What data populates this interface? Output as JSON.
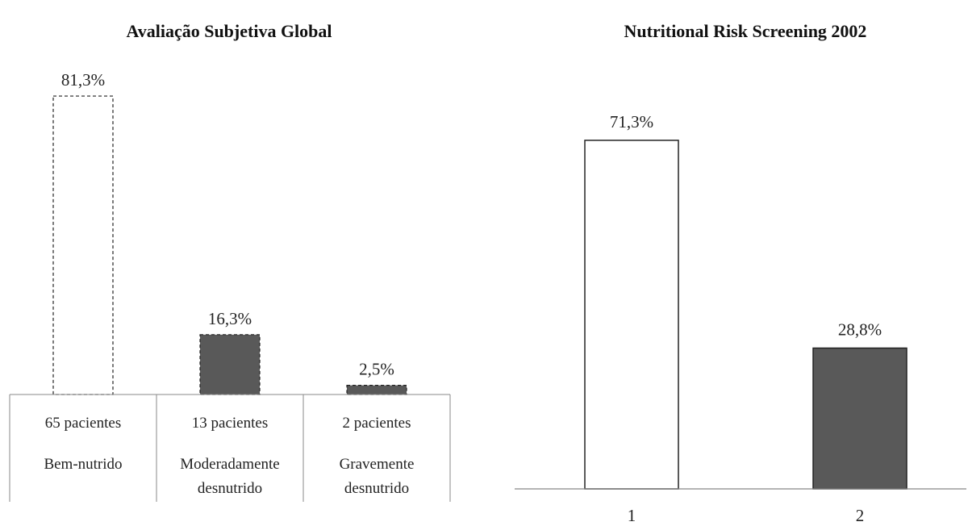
{
  "chart_data": [
    {
      "type": "bar",
      "title": "Avaliação Subjetiva  Global",
      "ylim": [
        0,
        100
      ],
      "grid": false,
      "categories": [
        "Bem-nutrido",
        "Moderadamente desnutrido",
        "Gravemente desnutrido"
      ],
      "values": [
        81.3,
        16.3,
        2.5
      ],
      "value_labels": [
        "81,3%",
        "16,3%",
        "2,5%"
      ],
      "table": {
        "counts": [
          "65 pacientes",
          "13 pacientes",
          "2 pacientes"
        ],
        "classes": [
          [
            "Bem-nutrido"
          ],
          [
            "Moderadamente",
            "desnutrido"
          ],
          [
            "Gravemente",
            "desnutrido"
          ]
        ]
      },
      "colors": [
        "#ffffff",
        "#595959",
        "#595959"
      ]
    },
    {
      "type": "bar",
      "title": "Nutritional  Risk Screening 2002",
      "ylim": [
        0,
        100
      ],
      "grid": false,
      "categories": [
        "1",
        "2"
      ],
      "values": [
        71.3,
        28.8
      ],
      "value_labels": [
        "71,3%",
        "28,8%"
      ],
      "colors": [
        "#ffffff",
        "#595959"
      ]
    }
  ]
}
